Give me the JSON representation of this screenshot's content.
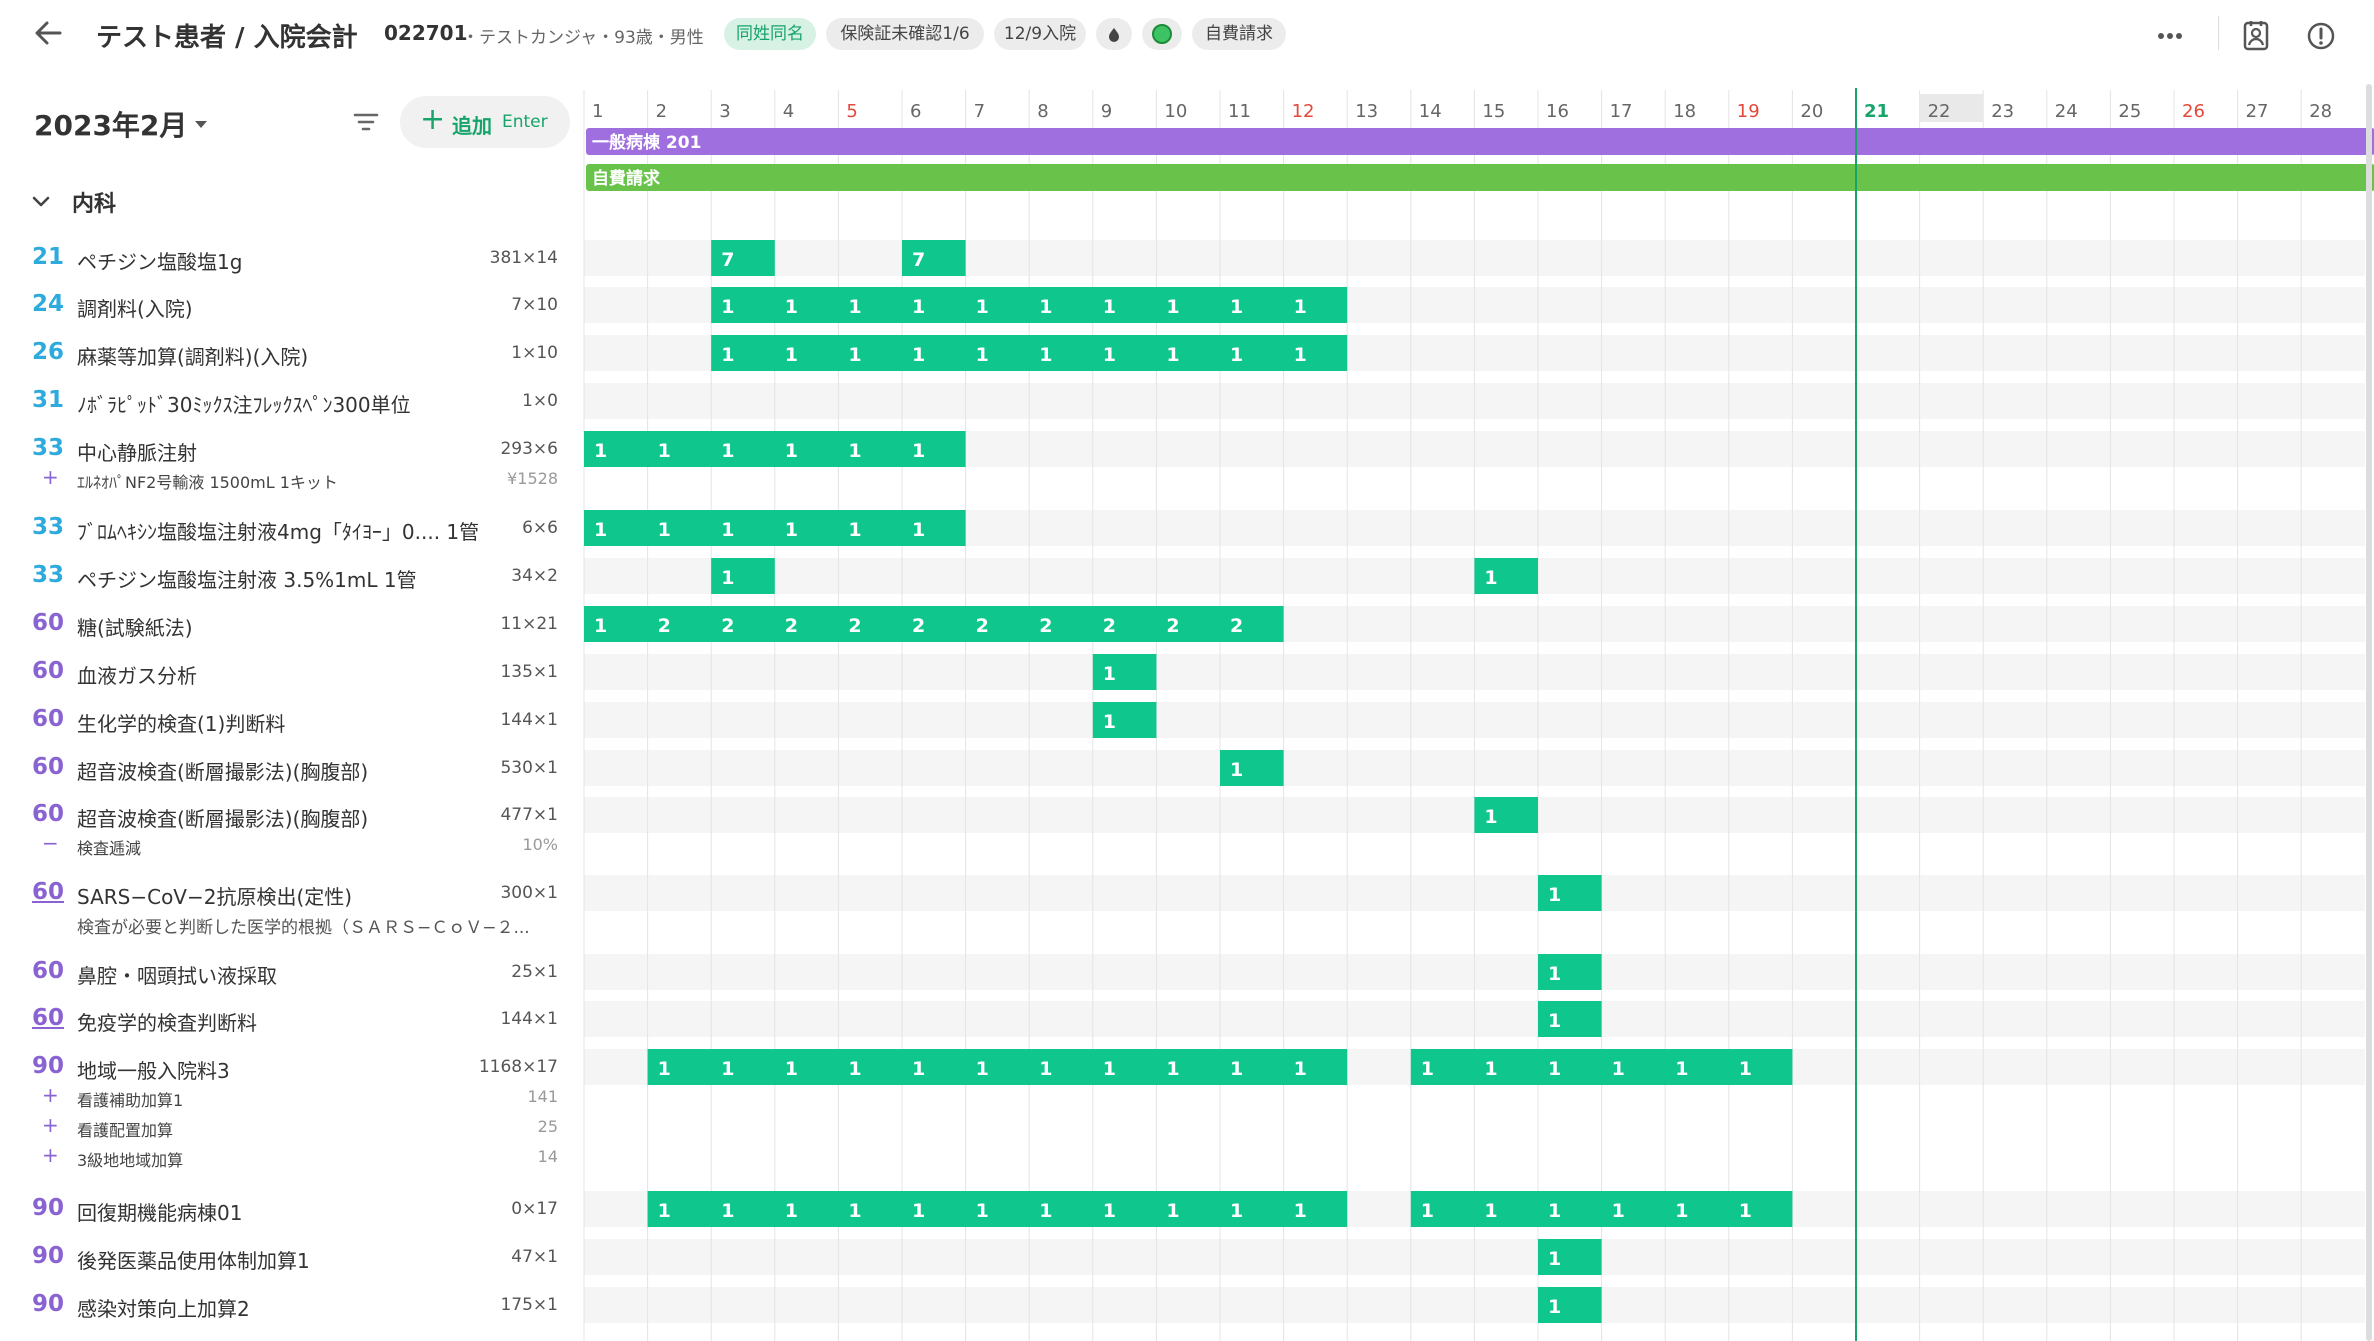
{
  "header": {
    "title": "テスト患者 / 入院会計",
    "patient_id": "022701",
    "patient_info": "・テストカンジャ・93歳・男性",
    "chips": [
      "同姓同名",
      "保険証未確認1/6",
      "12/9入院",
      "自費請求"
    ]
  },
  "toolbar": {
    "month": "2023年2月",
    "add_label": "追加",
    "add_shortcut": "Enter"
  },
  "department": "内科",
  "calendar": {
    "days": 28,
    "red_days": [
      5,
      12,
      19,
      26
    ],
    "today": 21,
    "highlight_day": 22,
    "ward_label": "一般病棟 201",
    "billing_label": "自費請求",
    "colors": {
      "ward": "#9f6fe0",
      "billing": "#69c34a",
      "cell": "#0fc68c",
      "today": "#16a46a"
    }
  },
  "items": [
    {
      "code": "21",
      "name": "ペチジン塩酸塩1g",
      "price": "381×14",
      "bars": [
        {
          "from": 3,
          "to": 3,
          "vals": [
            "7"
          ]
        },
        {
          "from": 6,
          "to": 6,
          "vals": [
            "7"
          ]
        }
      ]
    },
    {
      "code": "24",
      "name": "調剤料(入院)",
      "price": "7×10",
      "bars": [
        {
          "from": 3,
          "to": 12,
          "vals": [
            "1",
            "1",
            "1",
            "1",
            "1",
            "1",
            "1",
            "1",
            "1",
            "1"
          ]
        }
      ]
    },
    {
      "code": "26",
      "name": "麻薬等加算(調剤料)(入院)",
      "price": "1×10",
      "bars": [
        {
          "from": 3,
          "to": 12,
          "vals": [
            "1",
            "1",
            "1",
            "1",
            "1",
            "1",
            "1",
            "1",
            "1",
            "1"
          ]
        }
      ]
    },
    {
      "code": "31",
      "name": "ﾉﾎﾞﾗﾋﾟｯﾄﾞ30ﾐｯｸｽ注ﾌﾚｯｸｽﾍﾟﾝ300単位",
      "price": "1×0",
      "bars": []
    },
    {
      "code": "33",
      "name": "中心静脈注射",
      "price": "293×6",
      "bars": [
        {
          "from": 1,
          "to": 6,
          "vals": [
            "1",
            "1",
            "1",
            "1",
            "1",
            "1"
          ]
        }
      ],
      "subs": [
        {
          "sym": "+",
          "name": "ｴﾙﾈｵﾊﾟNF2号輸液 1500mL 1キット",
          "price": "¥1528"
        }
      ]
    },
    {
      "code": "33",
      "name": "ﾌﾞﾛﾑﾍｷｼﾝ塩酸塩注射液4mg「ﾀｲﾖｰ」0.... 1管",
      "price": "6×6",
      "bars": [
        {
          "from": 1,
          "to": 6,
          "vals": [
            "1",
            "1",
            "1",
            "1",
            "1",
            "1"
          ]
        }
      ]
    },
    {
      "code": "33",
      "name": "ペチジン塩酸塩注射液 3.5%1mL 1管",
      "price": "34×2",
      "bars": [
        {
          "from": 3,
          "to": 3,
          "vals": [
            "1"
          ]
        },
        {
          "from": 15,
          "to": 15,
          "vals": [
            "1"
          ]
        }
      ]
    },
    {
      "code": "60",
      "name": "糖(試験紙法)",
      "price": "11×21",
      "bars": [
        {
          "from": 1,
          "to": 11,
          "vals": [
            "1",
            "2",
            "2",
            "2",
            "2",
            "2",
            "2",
            "2",
            "2",
            "2",
            "2"
          ]
        }
      ]
    },
    {
      "code": "60",
      "name": "血液ガス分析",
      "price": "135×1",
      "bars": [
        {
          "from": 9,
          "to": 9,
          "vals": [
            "1"
          ]
        }
      ]
    },
    {
      "code": "60",
      "name": "生化学的検査(1)判断料",
      "price": "144×1",
      "bars": [
        {
          "from": 9,
          "to": 9,
          "vals": [
            "1"
          ]
        }
      ]
    },
    {
      "code": "60",
      "name": "超音波検査(断層撮影法)(胸腹部)",
      "price": "530×1",
      "bars": [
        {
          "from": 11,
          "to": 11,
          "vals": [
            "1"
          ]
        }
      ]
    },
    {
      "code": "60",
      "name": "超音波検査(断層撮影法)(胸腹部)",
      "price": "477×1",
      "bars": [
        {
          "from": 15,
          "to": 15,
          "vals": [
            "1"
          ]
        }
      ],
      "subs": [
        {
          "sym": "−",
          "name": "検査逓減",
          "price": "10%"
        }
      ]
    },
    {
      "code": "60",
      "underline": true,
      "name": "SARS−CoV−2抗原検出(定性)",
      "price": "300×1",
      "bars": [
        {
          "from": 16,
          "to": 16,
          "vals": [
            "1"
          ]
        }
      ],
      "note": "検査が必要と判断した医学的根拠（ＳＡＲＳ−ＣｏＶ−２..."
    },
    {
      "code": "60",
      "name": "鼻腔・咽頭拭い液採取",
      "price": "25×1",
      "bars": [
        {
          "from": 16,
          "to": 16,
          "vals": [
            "1"
          ]
        }
      ]
    },
    {
      "code": "60",
      "underline": true,
      "name": "免疫学的検査判断料",
      "price": "144×1",
      "bars": [
        {
          "from": 16,
          "to": 16,
          "vals": [
            "1"
          ]
        }
      ]
    },
    {
      "code": "90",
      "name": "地域一般入院料3",
      "price": "1168×17",
      "bars": [
        {
          "from": 2,
          "to": 12,
          "vals": [
            "1",
            "1",
            "1",
            "1",
            "1",
            "1",
            "1",
            "1",
            "1",
            "1",
            "1"
          ]
        },
        {
          "from": 14,
          "to": 19,
          "vals": [
            "1",
            "1",
            "1",
            "1",
            "1",
            "1"
          ]
        }
      ],
      "subs": [
        {
          "sym": "+",
          "name": "看護補助加算1",
          "price": "141"
        },
        {
          "sym": "+",
          "name": "看護配置加算",
          "price": "25"
        },
        {
          "sym": "+",
          "name": "3級地地域加算",
          "price": "14"
        }
      ]
    },
    {
      "code": "90",
      "name": "回復期機能病棟01",
      "price": "0×17",
      "bars": [
        {
          "from": 2,
          "to": 12,
          "vals": [
            "1",
            "1",
            "1",
            "1",
            "1",
            "1",
            "1",
            "1",
            "1",
            "1",
            "1"
          ]
        },
        {
          "from": 14,
          "to": 19,
          "vals": [
            "1",
            "1",
            "1",
            "1",
            "1",
            "1"
          ]
        }
      ]
    },
    {
      "code": "90",
      "name": "後発医薬品使用体制加算1",
      "price": "47×1",
      "bars": [
        {
          "from": 16,
          "to": 16,
          "vals": [
            "1"
          ]
        }
      ]
    },
    {
      "code": "90",
      "name": "感染対策向上加算2",
      "price": "175×1",
      "bars": [
        {
          "from": 16,
          "to": 16,
          "vals": [
            "1"
          ]
        }
      ]
    }
  ]
}
